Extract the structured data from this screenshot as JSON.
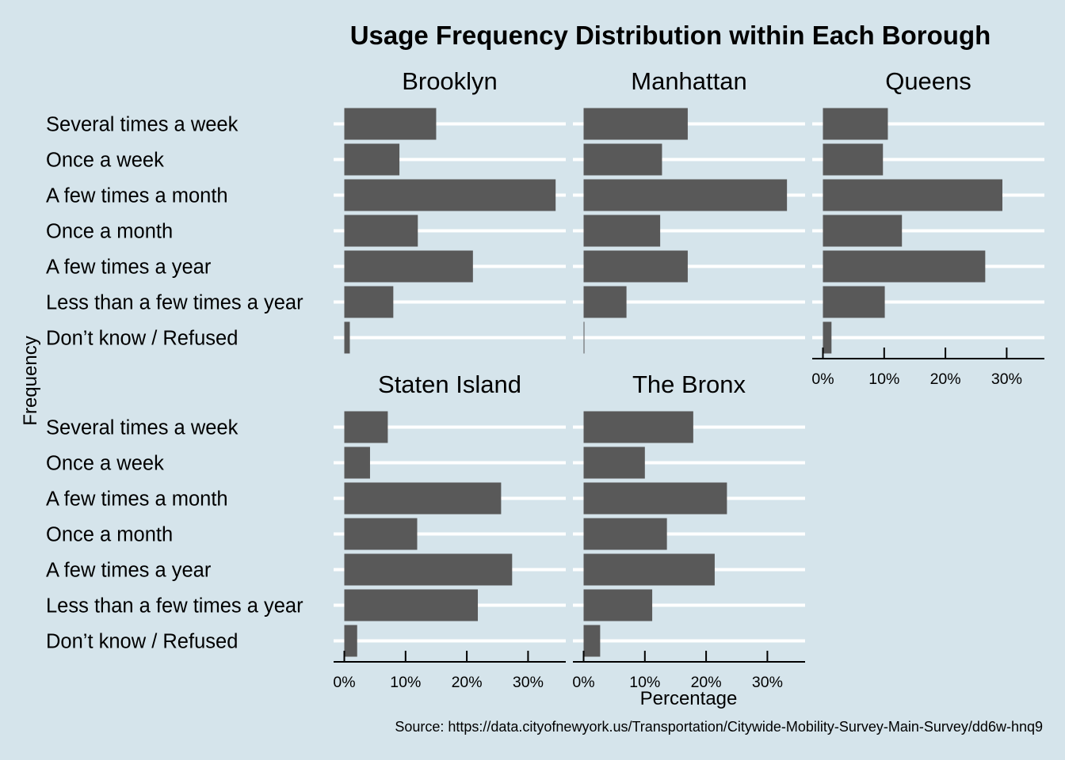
{
  "chart_data": {
    "type": "bar",
    "orientation": "horizontal",
    "layout": "faceted",
    "title": "Usage Frequency Distribution within Each Borough",
    "xlabel": "Percentage",
    "ylabel": "Frequency",
    "source": "Source: https://data.cityofnewyork.us/Transportation/Citywide-Mobility-Survey-Main-Survey/dd6w-hnq9",
    "xlim": [
      0,
      35
    ],
    "x_ticks": [
      0,
      10,
      20,
      30
    ],
    "x_tick_labels": [
      "0%",
      "10%",
      "20%",
      "30%"
    ],
    "grid": "horizontal",
    "colors": {
      "background": "#d5e4eb",
      "bar": "#595959",
      "grid": "#ffffff"
    },
    "categories": [
      "Several times a week",
      "Once a week",
      "A few times a month",
      "Once a month",
      "A few times a year",
      "Less than a few times a year",
      "Don’t know / Refused"
    ],
    "facets": [
      {
        "name": "Brooklyn",
        "values": [
          15.0,
          9.0,
          34.5,
          12.0,
          21.0,
          8.0,
          0.9
        ]
      },
      {
        "name": "Manhattan",
        "values": [
          17.0,
          12.8,
          33.2,
          12.5,
          17.0,
          7.0,
          0.1
        ]
      },
      {
        "name": "Queens",
        "values": [
          10.6,
          9.8,
          29.3,
          12.9,
          26.5,
          10.1,
          1.4
        ]
      },
      {
        "name": "Staten Island",
        "values": [
          7.1,
          4.2,
          25.6,
          11.9,
          27.4,
          21.8,
          2.1
        ]
      },
      {
        "name": "The Bronx",
        "values": [
          17.9,
          10.0,
          23.4,
          13.6,
          21.4,
          11.2,
          2.7
        ]
      }
    ]
  }
}
